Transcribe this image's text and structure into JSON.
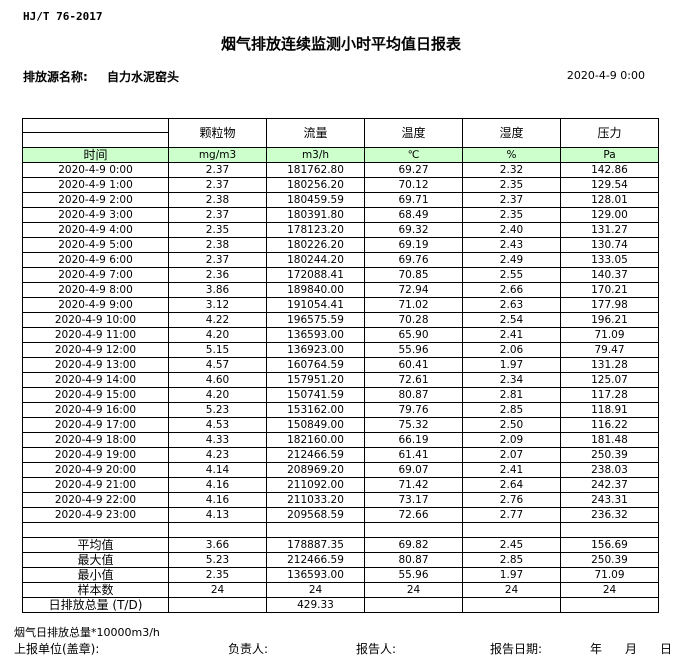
{
  "header": {
    "standard": "HJ/T  76-2017",
    "title": "烟气排放连续监测小时平均值日报表",
    "source_label": "排放源名称:",
    "source_value": "自力水泥窑头",
    "report_time": "2020-4-9 0:00"
  },
  "table": {
    "columns": [
      "颗粒物",
      "流量",
      "温度",
      "湿度",
      "压力"
    ],
    "time_label": "时间",
    "units": [
      "mg/m3",
      "m3/h",
      "℃",
      "%",
      "Pa"
    ],
    "rows": [
      [
        "2020-4-9 0:00",
        "2.37",
        "181762.80",
        "69.27",
        "2.32",
        "142.86"
      ],
      [
        "2020-4-9 1:00",
        "2.37",
        "180256.20",
        "70.12",
        "2.35",
        "129.54"
      ],
      [
        "2020-4-9 2:00",
        "2.38",
        "180459.59",
        "69.71",
        "2.37",
        "128.01"
      ],
      [
        "2020-4-9 3:00",
        "2.37",
        "180391.80",
        "68.49",
        "2.35",
        "129.00"
      ],
      [
        "2020-4-9 4:00",
        "2.35",
        "178123.20",
        "69.32",
        "2.40",
        "131.27"
      ],
      [
        "2020-4-9 5:00",
        "2.38",
        "180226.20",
        "69.19",
        "2.43",
        "130.74"
      ],
      [
        "2020-4-9 6:00",
        "2.37",
        "180244.20",
        "69.76",
        "2.49",
        "133.05"
      ],
      [
        "2020-4-9 7:00",
        "2.36",
        "172088.41",
        "70.85",
        "2.55",
        "140.37"
      ],
      [
        "2020-4-9 8:00",
        "3.86",
        "189840.00",
        "72.94",
        "2.66",
        "170.21"
      ],
      [
        "2020-4-9 9:00",
        "3.12",
        "191054.41",
        "71.02",
        "2.63",
        "177.98"
      ],
      [
        "2020-4-9 10:00",
        "4.22",
        "196575.59",
        "70.28",
        "2.54",
        "196.21"
      ],
      [
        "2020-4-9 11:00",
        "4.20",
        "136593.00",
        "65.90",
        "2.41",
        "71.09"
      ],
      [
        "2020-4-9 12:00",
        "5.15",
        "136923.00",
        "55.96",
        "2.06",
        "79.47"
      ],
      [
        "2020-4-9 13:00",
        "4.57",
        "160764.59",
        "60.41",
        "1.97",
        "131.28"
      ],
      [
        "2020-4-9 14:00",
        "4.60",
        "157951.20",
        "72.61",
        "2.34",
        "125.07"
      ],
      [
        "2020-4-9 15:00",
        "4.20",
        "150741.59",
        "80.87",
        "2.81",
        "117.28"
      ],
      [
        "2020-4-9 16:00",
        "5.23",
        "153162.00",
        "79.76",
        "2.85",
        "118.91"
      ],
      [
        "2020-4-9 17:00",
        "4.53",
        "150849.00",
        "75.32",
        "2.50",
        "116.22"
      ],
      [
        "2020-4-9 18:00",
        "4.33",
        "182160.00",
        "66.19",
        "2.09",
        "181.48"
      ],
      [
        "2020-4-9 19:00",
        "4.23",
        "212466.59",
        "61.41",
        "2.07",
        "250.39"
      ],
      [
        "2020-4-9 20:00",
        "4.14",
        "208969.20",
        "69.07",
        "2.41",
        "238.03"
      ],
      [
        "2020-4-9 21:00",
        "4.16",
        "211092.00",
        "71.42",
        "2.64",
        "242.37"
      ],
      [
        "2020-4-9 22:00",
        "4.16",
        "211033.20",
        "73.17",
        "2.76",
        "243.31"
      ],
      [
        "2020-4-9 23:00",
        "4.13",
        "209568.59",
        "72.66",
        "2.77",
        "236.32"
      ]
    ],
    "summary": [
      [
        "平均值",
        "3.66",
        "178887.35",
        "69.82",
        "2.45",
        "156.69"
      ],
      [
        "最大值",
        "5.23",
        "212466.59",
        "80.87",
        "2.85",
        "250.39"
      ],
      [
        "最小值",
        "2.35",
        "136593.00",
        "55.96",
        "1.97",
        "71.09"
      ],
      [
        "样本数",
        "24",
        "24",
        "24",
        "24",
        "24"
      ],
      [
        "日排放总量 (T/D)",
        "",
        "429.33",
        "",
        "",
        ""
      ]
    ]
  },
  "footer": {
    "note": "烟气日排放总量*10000m3/h",
    "unit": "上报单位(盖章):",
    "responsible": "负责人:",
    "reporter": "报告人:",
    "date": "报告日期:",
    "year": "年",
    "month": "月",
    "day": "日"
  }
}
